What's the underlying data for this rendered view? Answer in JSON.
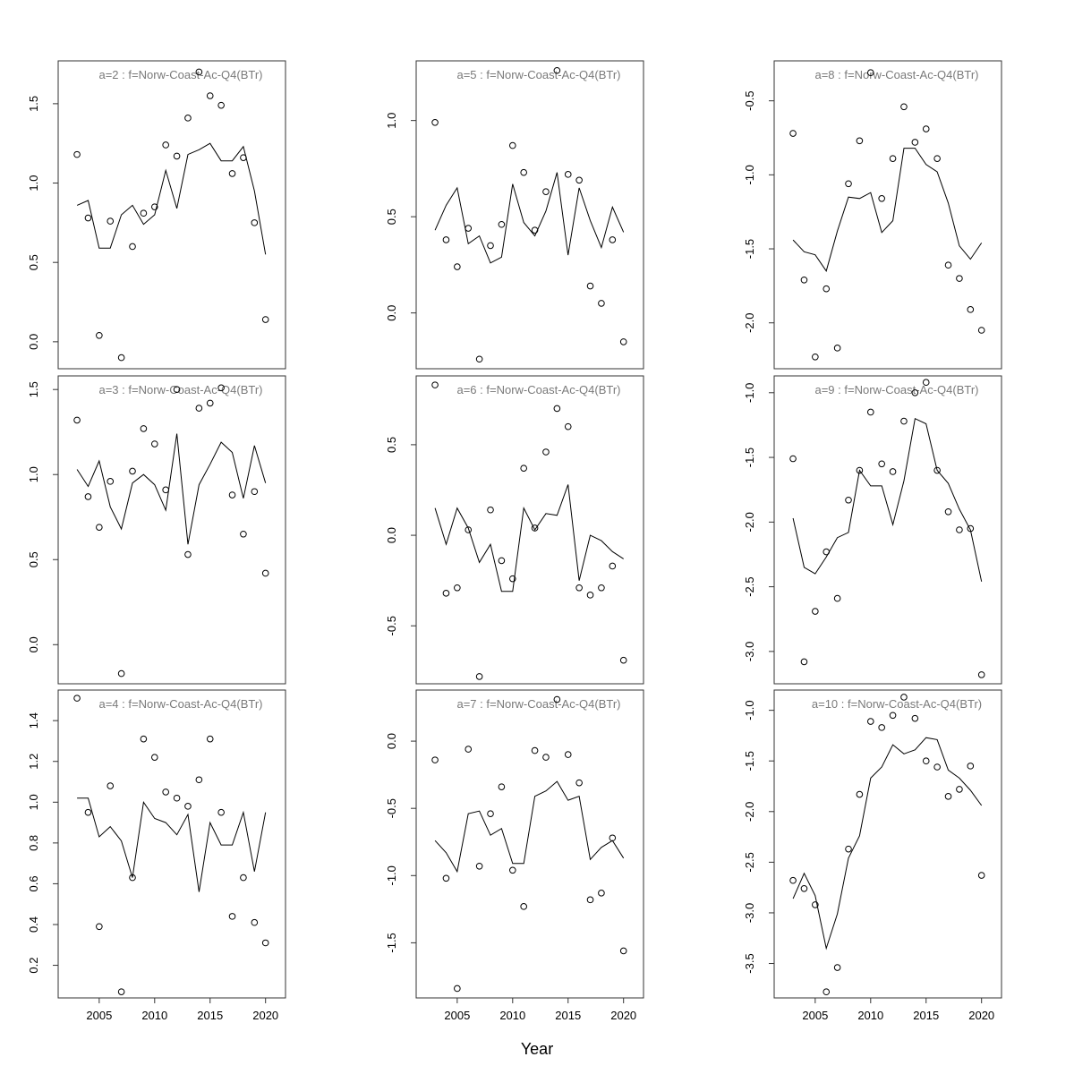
{
  "figure": {
    "xlabel": "Year"
  },
  "chart_data": [
    {
      "type": "scatter+line",
      "title": "a=2  :  f=Norw-Coast-Ac-Q4(BTr)",
      "x": [
        2003,
        2004,
        2005,
        2006,
        2007,
        2008,
        2009,
        2010,
        2011,
        2012,
        2013,
        2014,
        2015,
        2016,
        2017,
        2018,
        2019,
        2020
      ],
      "observed": [
        1.18,
        0.78,
        0.04,
        0.76,
        -0.1,
        0.6,
        0.81,
        0.85,
        1.24,
        1.17,
        1.41,
        1.7,
        1.55,
        1.49,
        1.06,
        1.16,
        0.75,
        0.14
      ],
      "fitted": [
        0.86,
        0.89,
        0.59,
        0.59,
        0.8,
        0.86,
        0.74,
        0.8,
        1.08,
        0.84,
        1.18,
        1.21,
        1.25,
        1.14,
        1.14,
        1.23,
        0.95,
        0.55
      ],
      "ylim": [
        -0.17,
        1.77
      ],
      "yticks": [
        0.0,
        0.5,
        1.0,
        1.5
      ],
      "ytick_labels": [
        "0.0",
        "0.5",
        "1.0",
        "1.5"
      ],
      "xlim": [
        2001.3,
        2021.8
      ],
      "xticks": [
        2005,
        2010,
        2015,
        2020
      ],
      "xtick_labels": [
        "2005",
        "2010",
        "2015",
        "2020"
      ],
      "show_xticks": false
    },
    {
      "type": "scatter+line",
      "title": "a=3  :  f=Norw-Coast-Ac-Q4(BTr)",
      "x": [
        2003,
        2004,
        2005,
        2006,
        2007,
        2008,
        2009,
        2010,
        2011,
        2012,
        2013,
        2014,
        2015,
        2016,
        2017,
        2018,
        2019,
        2020
      ],
      "observed": [
        1.32,
        0.87,
        0.69,
        0.96,
        -0.17,
        1.02,
        1.27,
        1.18,
        0.91,
        1.5,
        0.53,
        1.39,
        1.42,
        1.51,
        0.88,
        0.65,
        0.9,
        0.42
      ],
      "fitted": [
        1.03,
        0.93,
        1.08,
        0.81,
        0.68,
        0.95,
        1.0,
        0.94,
        0.79,
        1.24,
        0.59,
        0.94,
        1.06,
        1.19,
        1.13,
        0.86,
        1.17,
        0.95
      ],
      "ylim": [
        -0.23,
        1.58
      ],
      "yticks": [
        0.0,
        0.5,
        1.0,
        1.5
      ],
      "ytick_labels": [
        "0.0",
        "0.5",
        "1.0",
        "1.5"
      ],
      "xlim": [
        2001.3,
        2021.8
      ],
      "xticks": [
        2005,
        2010,
        2015,
        2020
      ],
      "xtick_labels": [
        "2005",
        "2010",
        "2015",
        "2020"
      ],
      "show_xticks": false
    },
    {
      "type": "scatter+line",
      "title": "a=4  :  f=Norw-Coast-Ac-Q4(BTr)",
      "x": [
        2003,
        2004,
        2005,
        2006,
        2007,
        2008,
        2009,
        2010,
        2011,
        2012,
        2013,
        2014,
        2015,
        2016,
        2017,
        2018,
        2019,
        2020
      ],
      "observed": [
        1.51,
        0.95,
        0.39,
        1.08,
        0.07,
        0.63,
        1.31,
        1.22,
        1.05,
        1.02,
        0.98,
        1.11,
        1.31,
        0.95,
        0.44,
        0.63,
        0.41,
        0.31
      ],
      "fitted": [
        1.02,
        1.02,
        0.83,
        0.88,
        0.81,
        0.63,
        1.0,
        0.92,
        0.9,
        0.84,
        0.94,
        0.56,
        0.9,
        0.79,
        0.79,
        0.95,
        0.66,
        0.95
      ],
      "ylim": [
        0.04,
        1.55
      ],
      "yticks": [
        0.2,
        0.4,
        0.6,
        0.8,
        1.0,
        1.2,
        1.4
      ],
      "ytick_labels": [
        "0.2",
        "0.4",
        "0.6",
        "0.8",
        "1.0",
        "1.2",
        "1.4"
      ],
      "xlim": [
        2001.3,
        2021.8
      ],
      "xticks": [
        2005,
        2010,
        2015,
        2020
      ],
      "xtick_labels": [
        "2005",
        "2010",
        "2015",
        "2020"
      ],
      "show_xticks": true
    },
    {
      "type": "scatter+line",
      "title": "a=5  :  f=Norw-Coast-Ac-Q4(BTr)",
      "x": [
        2003,
        2004,
        2005,
        2006,
        2007,
        2008,
        2009,
        2010,
        2011,
        2012,
        2013,
        2014,
        2015,
        2016,
        2017,
        2018,
        2019,
        2020
      ],
      "observed": [
        0.99,
        0.38,
        0.24,
        0.44,
        -0.24,
        0.35,
        0.46,
        0.87,
        0.73,
        0.43,
        0.63,
        1.26,
        0.72,
        0.69,
        0.14,
        0.05,
        0.38,
        -0.15
      ],
      "fitted": [
        0.43,
        0.56,
        0.65,
        0.36,
        0.4,
        0.26,
        0.29,
        0.67,
        0.47,
        0.4,
        0.53,
        0.73,
        0.3,
        0.65,
        0.48,
        0.34,
        0.55,
        0.42
      ],
      "ylim": [
        -0.29,
        1.31
      ],
      "yticks": [
        0.0,
        0.5,
        1.0
      ],
      "ytick_labels": [
        "0.0",
        "0.5",
        "1.0"
      ],
      "xlim": [
        2001.3,
        2021.8
      ],
      "xticks": [
        2005,
        2010,
        2015,
        2020
      ],
      "xtick_labels": [
        "2005",
        "2010",
        "2015",
        "2020"
      ],
      "show_xticks": false
    },
    {
      "type": "scatter+line",
      "title": "a=6  :  f=Norw-Coast-Ac-Q4(BTr)",
      "x": [
        2003,
        2004,
        2005,
        2006,
        2007,
        2008,
        2009,
        2010,
        2011,
        2012,
        2013,
        2014,
        2015,
        2016,
        2017,
        2018,
        2019,
        2020
      ],
      "observed": [
        0.83,
        -0.32,
        -0.29,
        0.03,
        -0.78,
        0.14,
        -0.14,
        -0.24,
        0.37,
        0.04,
        0.46,
        0.7,
        0.6,
        -0.29,
        -0.33,
        -0.29,
        -0.17,
        -0.69
      ],
      "fitted": [
        0.15,
        -0.05,
        0.15,
        0.04,
        -0.15,
        -0.05,
        -0.31,
        -0.31,
        0.15,
        0.03,
        0.12,
        0.11,
        0.28,
        -0.25,
        0.0,
        -0.03,
        -0.09,
        -0.13
      ],
      "ylim": [
        -0.82,
        0.88
      ],
      "yticks": [
        -0.5,
        0.0,
        0.5
      ],
      "ytick_labels": [
        "-0.5",
        "0.0",
        "0.5"
      ],
      "xlim": [
        2001.3,
        2021.8
      ],
      "xticks": [
        2005,
        2010,
        2015,
        2020
      ],
      "xtick_labels": [
        "2005",
        "2010",
        "2015",
        "2020"
      ],
      "show_xticks": false
    },
    {
      "type": "scatter+line",
      "title": "a=7  :  f=Norw-Coast-Ac-Q4(BTr)",
      "x": [
        2003,
        2004,
        2005,
        2006,
        2007,
        2008,
        2009,
        2010,
        2011,
        2012,
        2013,
        2014,
        2015,
        2016,
        2017,
        2018,
        2019,
        2020
      ],
      "observed": [
        -0.14,
        -1.02,
        -1.84,
        -0.06,
        -0.93,
        -0.54,
        -0.34,
        -0.96,
        -1.23,
        -0.07,
        -0.12,
        0.31,
        -0.1,
        -0.31,
        -1.18,
        -1.13,
        -0.72,
        -1.56
      ],
      "fitted": [
        -0.74,
        -0.83,
        -0.97,
        -0.54,
        -0.52,
        -0.7,
        -0.65,
        -0.91,
        -0.91,
        -0.41,
        -0.37,
        -0.3,
        -0.44,
        -0.41,
        -0.88,
        -0.79,
        -0.74,
        -0.87
      ],
      "ylim": [
        -1.91,
        0.38
      ],
      "yticks": [
        -1.5,
        -1.0,
        -0.5,
        0.0
      ],
      "ytick_labels": [
        "-1.5",
        "-1.0",
        "-0.5",
        "0.0"
      ],
      "xlim": [
        2001.3,
        2021.8
      ],
      "xticks": [
        2005,
        2010,
        2015,
        2020
      ],
      "xtick_labels": [
        "2005",
        "2010",
        "2015",
        "2020"
      ],
      "show_xticks": true
    },
    {
      "type": "scatter+line",
      "title": "a=8  :  f=Norw-Coast-Ac-Q4(BTr)",
      "x": [
        2003,
        2004,
        2005,
        2006,
        2007,
        2008,
        2009,
        2010,
        2011,
        2012,
        2013,
        2014,
        2015,
        2016,
        2017,
        2018,
        2019,
        2020
      ],
      "observed": [
        -0.72,
        -1.71,
        -2.23,
        -1.77,
        -2.17,
        -1.06,
        -0.77,
        -0.31,
        -1.16,
        -0.89,
        -0.54,
        -0.78,
        -0.69,
        -0.89,
        -1.61,
        -1.7,
        -1.91,
        -2.05
      ],
      "fitted": [
        -1.44,
        -1.52,
        -1.54,
        -1.65,
        -1.38,
        -1.15,
        -1.16,
        -1.12,
        -1.39,
        -1.31,
        -0.82,
        -0.82,
        -0.93,
        -0.98,
        -1.19,
        -1.48,
        -1.57,
        -1.46
      ],
      "ylim": [
        -2.31,
        -0.23
      ],
      "yticks": [
        -2.0,
        -1.5,
        -1.0,
        -0.5
      ],
      "ytick_labels": [
        "-2.0",
        "-1.5",
        "-1.0",
        "-0.5"
      ],
      "xlim": [
        2001.3,
        2021.8
      ],
      "xticks": [
        2005,
        2010,
        2015,
        2020
      ],
      "xtick_labels": [
        "2005",
        "2010",
        "2015",
        "2020"
      ],
      "show_xticks": false
    },
    {
      "type": "scatter+line",
      "title": "a=9  :  f=Norw-Coast-Ac-Q4(BTr)",
      "x": [
        2003,
        2004,
        2005,
        2006,
        2007,
        2008,
        2009,
        2010,
        2011,
        2012,
        2013,
        2014,
        2015,
        2016,
        2017,
        2018,
        2019,
        2020
      ],
      "observed": [
        -1.51,
        -3.08,
        -2.69,
        -2.23,
        -2.59,
        -1.83,
        -1.6,
        -1.15,
        -1.55,
        -1.61,
        -1.22,
        -1.0,
        -0.92,
        -1.6,
        -1.92,
        -2.06,
        -2.05,
        -3.18
      ],
      "fitted": [
        -1.97,
        -2.35,
        -2.4,
        -2.27,
        -2.12,
        -2.08,
        -1.6,
        -1.72,
        -1.72,
        -2.02,
        -1.68,
        -1.2,
        -1.24,
        -1.6,
        -1.7,
        -1.9,
        -2.06,
        -2.46
      ],
      "ylim": [
        -3.25,
        -0.87
      ],
      "yticks": [
        -3.0,
        -2.5,
        -2.0,
        -1.5,
        -1.0
      ],
      "ytick_labels": [
        "-3.0",
        "-2.5",
        "-2.0",
        "-1.5",
        "-1.0"
      ],
      "xlim": [
        2001.3,
        2021.8
      ],
      "xticks": [
        2005,
        2010,
        2015,
        2020
      ],
      "xtick_labels": [
        "2005",
        "2010",
        "2015",
        "2020"
      ],
      "show_xticks": false
    },
    {
      "type": "scatter+line",
      "title": "a=10  :  f=Norw-Coast-Ac-Q4(BTr)",
      "x": [
        2003,
        2004,
        2005,
        2006,
        2007,
        2008,
        2009,
        2010,
        2011,
        2012,
        2013,
        2014,
        2015,
        2016,
        2017,
        2018,
        2019,
        2020
      ],
      "observed": [
        -2.68,
        -2.76,
        -2.92,
        -3.78,
        -3.54,
        -2.37,
        -1.83,
        -1.11,
        -1.17,
        -1.05,
        -0.87,
        -1.08,
        -1.5,
        -1.56,
        -1.85,
        -1.78,
        -1.55,
        -2.63
      ],
      "fitted": [
        -2.86,
        -2.61,
        -2.83,
        -3.35,
        -3.01,
        -2.46,
        -2.24,
        -1.67,
        -1.56,
        -1.34,
        -1.43,
        -1.39,
        -1.27,
        -1.29,
        -1.59,
        -1.67,
        -1.79,
        -1.94
      ],
      "ylim": [
        -3.84,
        -0.8
      ],
      "yticks": [
        -3.5,
        -3.0,
        -2.5,
        -2.0,
        -1.5,
        -1.0
      ],
      "ytick_labels": [
        "-3.5",
        "-3.0",
        "-2.5",
        "-2.0",
        "-1.5",
        "-1.0"
      ],
      "xlim": [
        2001.3,
        2021.8
      ],
      "xticks": [
        2005,
        2010,
        2015,
        2020
      ],
      "xtick_labels": [
        "2005",
        "2010",
        "2015",
        "2020"
      ],
      "show_xticks": true
    }
  ]
}
